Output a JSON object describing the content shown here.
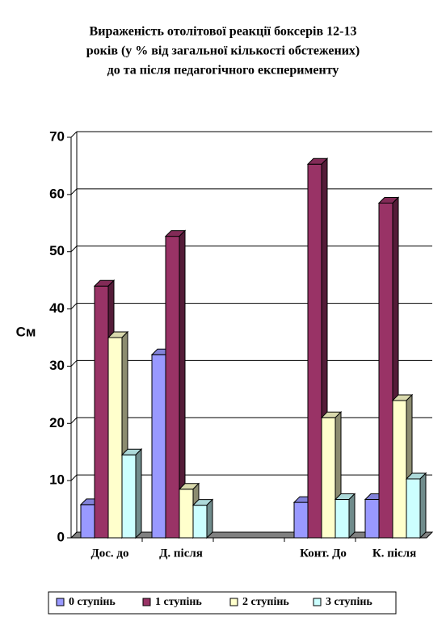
{
  "chart_data": {
    "type": "bar3d",
    "title": [
      "Вираженість отолітової реакції боксерів 12-13",
      "років (у % від загальної кількості обстежених)",
      "до та після педагогічного експерименту"
    ],
    "y_label": "См",
    "categories": [
      "Дос. до",
      "Д. після",
      null,
      "Конт. До",
      "К. після"
    ],
    "series": [
      {
        "name": "0 ступінь",
        "color": "#9999ff",
        "values": [
          5.8,
          32,
          null,
          6.2,
          6.7
        ]
      },
      {
        "name": "1 ступінь",
        "color": "#993366",
        "values": [
          44,
          52.7,
          null,
          65.3,
          58.5
        ]
      },
      {
        "name": "2 ступінь",
        "color": "#ffffcc",
        "values": [
          35,
          8.5,
          null,
          21,
          24
        ]
      },
      {
        "name": "3 ступінь",
        "color": "#ccffff",
        "values": [
          14.5,
          5.7,
          null,
          6.7,
          10.3
        ]
      }
    ],
    "ylim": [
      0,
      70
    ],
    "yticks": [
      0,
      10,
      20,
      30,
      40,
      50,
      60,
      70
    ],
    "grid": true,
    "legend": "bottom"
  }
}
